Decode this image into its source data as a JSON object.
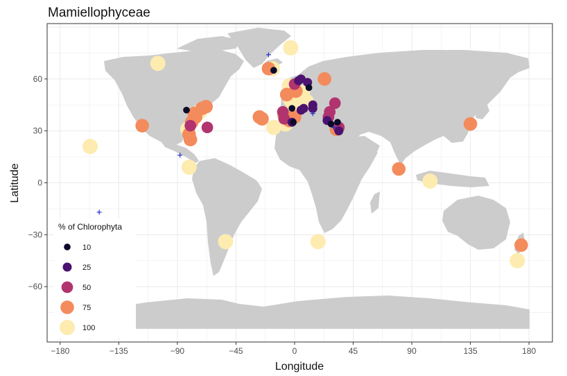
{
  "chart_data": {
    "type": "scatter",
    "title": "Mamiellophyceae",
    "xlabel": "Longitude",
    "ylabel": "Latitude",
    "xlim": [
      -190,
      198
    ],
    "ylim": [
      -92,
      92
    ],
    "x_ticks": [
      -180,
      -135,
      -90,
      -45,
      0,
      45,
      90,
      135,
      180
    ],
    "x_tick_labels": [
      "−180",
      "−135",
      "−90",
      "−45",
      "0",
      "45",
      "90",
      "135",
      "180"
    ],
    "y_ticks": [
      -60,
      -30,
      0,
      30,
      60
    ],
    "y_tick_labels": [
      "−60",
      "−30",
      "0",
      "30",
      "60"
    ],
    "grid": true,
    "legend": {
      "title": "% of Chlorophyta",
      "placement": "left-bottom",
      "items": [
        {
          "label": "10",
          "value": 10,
          "color": "#0c0a2a"
        },
        {
          "label": "25",
          "value": 25,
          "color": "#4b1270"
        },
        {
          "label": "50",
          "value": 50,
          "color": "#b1346f"
        },
        {
          "label": "75",
          "value": 75,
          "color": "#f38b5c"
        },
        {
          "label": "100",
          "value": 100,
          "color": "#fdebb0"
        }
      ]
    },
    "zero_markers": {
      "symbol": "+",
      "color": "#1f2fc8",
      "points": [
        {
          "lon": -20,
          "lat": 74
        },
        {
          "lon": -88,
          "lat": 16
        },
        {
          "lon": -150,
          "lat": -17
        },
        {
          "lon": 14,
          "lat": 40
        },
        {
          "lon": 30,
          "lat": 32
        }
      ]
    },
    "points": [
      {
        "lon": -105,
        "lat": 69,
        "pct": 100
      },
      {
        "lon": -157,
        "lat": 21,
        "pct": 100
      },
      {
        "lon": -117,
        "lat": 33,
        "pct": 75
      },
      {
        "lon": -83,
        "lat": 42,
        "pct": 10
      },
      {
        "lon": -77,
        "lat": 40,
        "pct": 75
      },
      {
        "lon": -71,
        "lat": 43,
        "pct": 75
      },
      {
        "lon": -68,
        "lat": 44,
        "pct": 75
      },
      {
        "lon": -73,
        "lat": 41,
        "pct": 100
      },
      {
        "lon": -76,
        "lat": 38,
        "pct": 75
      },
      {
        "lon": -79,
        "lat": 35,
        "pct": 75
      },
      {
        "lon": -80,
        "lat": 33,
        "pct": 50
      },
      {
        "lon": -82,
        "lat": 31,
        "pct": 100
      },
      {
        "lon": -81,
        "lat": 28,
        "pct": 75
      },
      {
        "lon": -80,
        "lat": 25,
        "pct": 75
      },
      {
        "lon": -67,
        "lat": 32,
        "pct": 50
      },
      {
        "lon": -81,
        "lat": 9,
        "pct": 100
      },
      {
        "lon": -53,
        "lat": -34,
        "pct": 100
      },
      {
        "lon": -3,
        "lat": 78,
        "pct": 100
      },
      {
        "lon": -20,
        "lat": 66,
        "pct": 75
      },
      {
        "lon": -17,
        "lat": 66,
        "pct": 100
      },
      {
        "lon": -16,
        "lat": 65,
        "pct": 10
      },
      {
        "lon": -27,
        "lat": 38,
        "pct": 75
      },
      {
        "lon": -25,
        "lat": 37,
        "pct": 75
      },
      {
        "lon": -16,
        "lat": 32,
        "pct": 100
      },
      {
        "lon": 5,
        "lat": 60,
        "pct": 25
      },
      {
        "lon": 3,
        "lat": 59,
        "pct": 25
      },
      {
        "lon": 0,
        "lat": 57,
        "pct": 50
      },
      {
        "lon": -4,
        "lat": 56,
        "pct": 100
      },
      {
        "lon": 10,
        "lat": 58,
        "pct": 25
      },
      {
        "lon": 11,
        "lat": 55,
        "pct": 10
      },
      {
        "lon": 1,
        "lat": 53,
        "pct": 75
      },
      {
        "lon": 6,
        "lat": 52,
        "pct": 100
      },
      {
        "lon": -6,
        "lat": 51,
        "pct": 75
      },
      {
        "lon": -3,
        "lat": 48,
        "pct": 100
      },
      {
        "lon": 3,
        "lat": 49,
        "pct": 100
      },
      {
        "lon": 9,
        "lat": 47,
        "pct": 100
      },
      {
        "lon": 14,
        "lat": 45,
        "pct": 25
      },
      {
        "lon": 14,
        "lat": 43,
        "pct": 25
      },
      {
        "lon": 7,
        "lat": 43,
        "pct": 25
      },
      {
        "lon": 5,
        "lat": 42,
        "pct": 25
      },
      {
        "lon": -1,
        "lat": 44,
        "pct": 100
      },
      {
        "lon": -2,
        "lat": 43,
        "pct": 10
      },
      {
        "lon": -9,
        "lat": 41,
        "pct": 50
      },
      {
        "lon": -8,
        "lat": 39,
        "pct": 75
      },
      {
        "lon": -8,
        "lat": 37,
        "pct": 50
      },
      {
        "lon": -4,
        "lat": 36,
        "pct": 75
      },
      {
        "lon": 0,
        "lat": 38,
        "pct": 75
      },
      {
        "lon": -2,
        "lat": 35,
        "pct": 25
      },
      {
        "lon": -1,
        "lat": 35,
        "pct": 10
      },
      {
        "lon": -7,
        "lat": 34,
        "pct": 100
      },
      {
        "lon": 23,
        "lat": 60,
        "pct": 75
      },
      {
        "lon": 31,
        "lat": 46,
        "pct": 50
      },
      {
        "lon": 27,
        "lat": 41,
        "pct": 50
      },
      {
        "lon": 26,
        "lat": 38,
        "pct": 50
      },
      {
        "lon": 25,
        "lat": 36,
        "pct": 25
      },
      {
        "lon": 28,
        "lat": 34,
        "pct": 10
      },
      {
        "lon": 33,
        "lat": 35,
        "pct": 10
      },
      {
        "lon": 32,
        "lat": 31,
        "pct": 75
      },
      {
        "lon": 34,
        "lat": 32,
        "pct": 50
      },
      {
        "lon": 34,
        "lat": 30,
        "pct": 25
      },
      {
        "lon": 80,
        "lat": 8,
        "pct": 75
      },
      {
        "lon": 104,
        "lat": 1,
        "pct": 100
      },
      {
        "lon": 135,
        "lat": 34,
        "pct": 75
      },
      {
        "lon": 18,
        "lat": -34,
        "pct": 100
      },
      {
        "lon": 174,
        "lat": -36,
        "pct": 75
      },
      {
        "lon": 171,
        "lat": -45,
        "pct": 100
      }
    ]
  }
}
